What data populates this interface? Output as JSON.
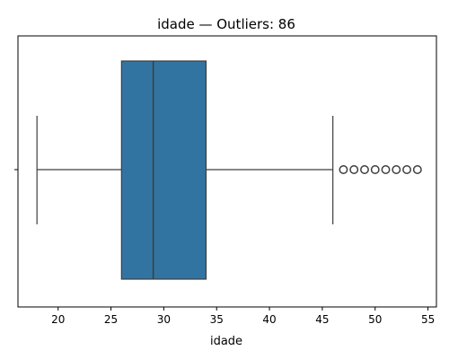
{
  "chart_data": {
    "type": "boxplot",
    "orientation": "horizontal",
    "title": "idade — Outliers: 86",
    "xlabel": "idade",
    "ylabel": "",
    "xlim": [
      16.2,
      55.8
    ],
    "xticks": [
      20,
      25,
      30,
      35,
      40,
      45,
      50,
      55
    ],
    "grid": false,
    "box": {
      "whisker_low": 18,
      "q1": 26,
      "median": 29,
      "q3": 34,
      "whisker_high": 46,
      "outliers": [
        47,
        48,
        49,
        50,
        51,
        52,
        53,
        54
      ]
    },
    "colors": {
      "box_fill": "#3274a1",
      "line": "#3d3d3d",
      "axes": "#000000",
      "background": "#ffffff"
    }
  }
}
